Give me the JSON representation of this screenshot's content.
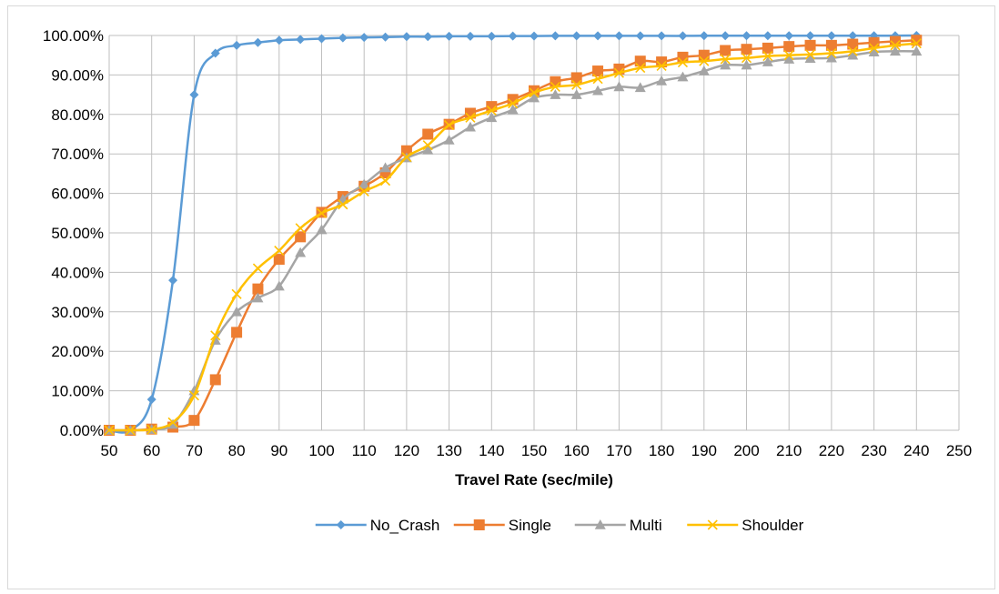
{
  "chart_data": {
    "type": "line",
    "title": "",
    "xlabel": "Travel Rate (sec/mile)",
    "ylabel": "",
    "xlim": [
      50,
      250
    ],
    "ylim": [
      0,
      100
    ],
    "grid": true,
    "legend_position": "bottom",
    "x_ticks": [
      "50",
      "60",
      "70",
      "80",
      "90",
      "100",
      "110",
      "120",
      "130",
      "140",
      "150",
      "160",
      "170",
      "180",
      "190",
      "200",
      "210",
      "220",
      "230",
      "240",
      "250"
    ],
    "y_ticks": [
      "0.00%",
      "10.00%",
      "20.00%",
      "30.00%",
      "40.00%",
      "50.00%",
      "60.00%",
      "70.00%",
      "80.00%",
      "90.00%",
      "100.00%"
    ],
    "x": [
      50,
      55,
      60,
      65,
      70,
      75,
      80,
      85,
      90,
      95,
      100,
      105,
      110,
      115,
      120,
      125,
      130,
      135,
      140,
      145,
      150,
      155,
      160,
      165,
      170,
      175,
      180,
      185,
      190,
      195,
      200,
      205,
      210,
      215,
      220,
      225,
      230,
      235,
      240
    ],
    "series": [
      {
        "name": "No_Crash",
        "color": "#5b9bd5",
        "marker": "diamond",
        "values": [
          0,
          0,
          7.8,
          38,
          85,
          95.5,
          97.5,
          98.2,
          98.8,
          99,
          99.2,
          99.4,
          99.5,
          99.6,
          99.7,
          99.7,
          99.8,
          99.8,
          99.8,
          99.85,
          99.85,
          99.9,
          99.9,
          99.9,
          99.9,
          99.9,
          99.9,
          99.9,
          99.95,
          99.95,
          99.95,
          99.95,
          99.95,
          99.95,
          99.95,
          99.95,
          99.95,
          99.95,
          100
        ]
      },
      {
        "name": "Single",
        "color": "#ed7d31",
        "marker": "square",
        "values": [
          0,
          0,
          0.3,
          0.8,
          2.5,
          12.8,
          24.8,
          35.8,
          43.3,
          49,
          55.2,
          59.2,
          61.8,
          65.2,
          70.8,
          75,
          77.5,
          80.3,
          82,
          83.8,
          86,
          88.3,
          89.3,
          91,
          91.5,
          93.5,
          93.3,
          94.5,
          95,
          96.2,
          96.5,
          96.8,
          97.2,
          97.5,
          97.5,
          97.8,
          98.2,
          98.5,
          98.8
        ]
      },
      {
        "name": "Multi",
        "color": "#a5a5a5",
        "marker": "triangle",
        "values": [
          0,
          0,
          0.2,
          1.5,
          10,
          22.8,
          30,
          33.5,
          36.5,
          45,
          50.8,
          58.5,
          62.3,
          66.5,
          69,
          71,
          73.5,
          76.8,
          79.2,
          81.2,
          84.2,
          85,
          85,
          86,
          87,
          86.8,
          88.5,
          89.5,
          91,
          92.5,
          92.5,
          93.3,
          94,
          94.2,
          94.3,
          95,
          95.8,
          96,
          96
        ]
      },
      {
        "name": "Shoulder",
        "color": "#ffc000",
        "marker": "x",
        "values": [
          0,
          0,
          0.2,
          2,
          8.8,
          24,
          34.5,
          41,
          45.5,
          51.2,
          55,
          57.2,
          60.5,
          63.2,
          69.2,
          72.2,
          77.3,
          79.2,
          81,
          82.8,
          85.5,
          87,
          87.5,
          89,
          90.5,
          91.8,
          92.3,
          93.2,
          93.5,
          94,
          94.3,
          94.8,
          95,
          95.2,
          95.5,
          96,
          96.8,
          97.5,
          98
        ]
      }
    ]
  }
}
